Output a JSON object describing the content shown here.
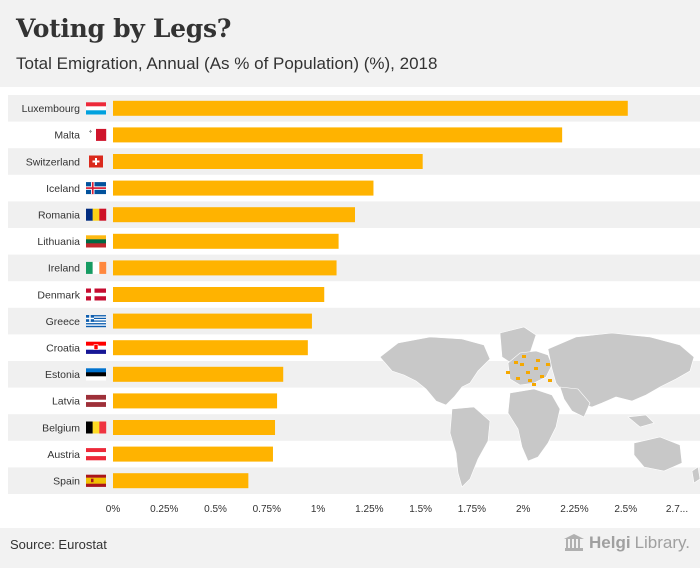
{
  "header": {
    "title": "Voting by Legs?",
    "subtitle": "Total Emigration, Annual (As % of Population) (%), 2018"
  },
  "footer": {
    "source": "Source: Eurostat",
    "brand_bold": "Helgi",
    "brand_light": "Library."
  },
  "colors": {
    "bar": "#ffb300",
    "stripe": "#f0f0f0",
    "map_land": "#c8c8c8",
    "map_highlight": "#f5a800"
  },
  "chart_data": {
    "type": "bar",
    "orientation": "horizontal",
    "title": "Total Emigration, Annual (As % of Population) (%), 2018",
    "xlabel": "",
    "ylabel": "",
    "xlim": [
      0,
      2.75
    ],
    "ticks": [
      "0%",
      "0.25%",
      "0.5%",
      "0.75%",
      "1%",
      "1.25%",
      "1.5%",
      "1.75%",
      "2%",
      "2.25%",
      "2.5%",
      "2.7..."
    ],
    "tick_values": [
      0,
      0.25,
      0.5,
      0.75,
      1,
      1.25,
      1.5,
      1.75,
      2,
      2.25,
      2.5,
      2.75
    ],
    "categories": [
      "Luxembourg",
      "Malta",
      "Switzerland",
      "Iceland",
      "Romania",
      "Lithuania",
      "Ireland",
      "Denmark",
      "Greece",
      "Croatia",
      "Estonia",
      "Latvia",
      "Belgium",
      "Austria",
      "Spain"
    ],
    "flags": [
      "luxembourg-flag",
      "malta-flag",
      "switzerland-flag",
      "iceland-flag",
      "romania-flag",
      "lithuania-flag",
      "ireland-flag",
      "denmark-flag",
      "greece-flag",
      "croatia-flag",
      "estonia-flag",
      "latvia-flag",
      "belgium-flag",
      "austria-flag",
      "spain-flag"
    ],
    "values": [
      2.51,
      2.19,
      1.51,
      1.27,
      1.18,
      1.1,
      1.09,
      1.03,
      0.97,
      0.95,
      0.83,
      0.8,
      0.79,
      0.78,
      0.66
    ]
  }
}
